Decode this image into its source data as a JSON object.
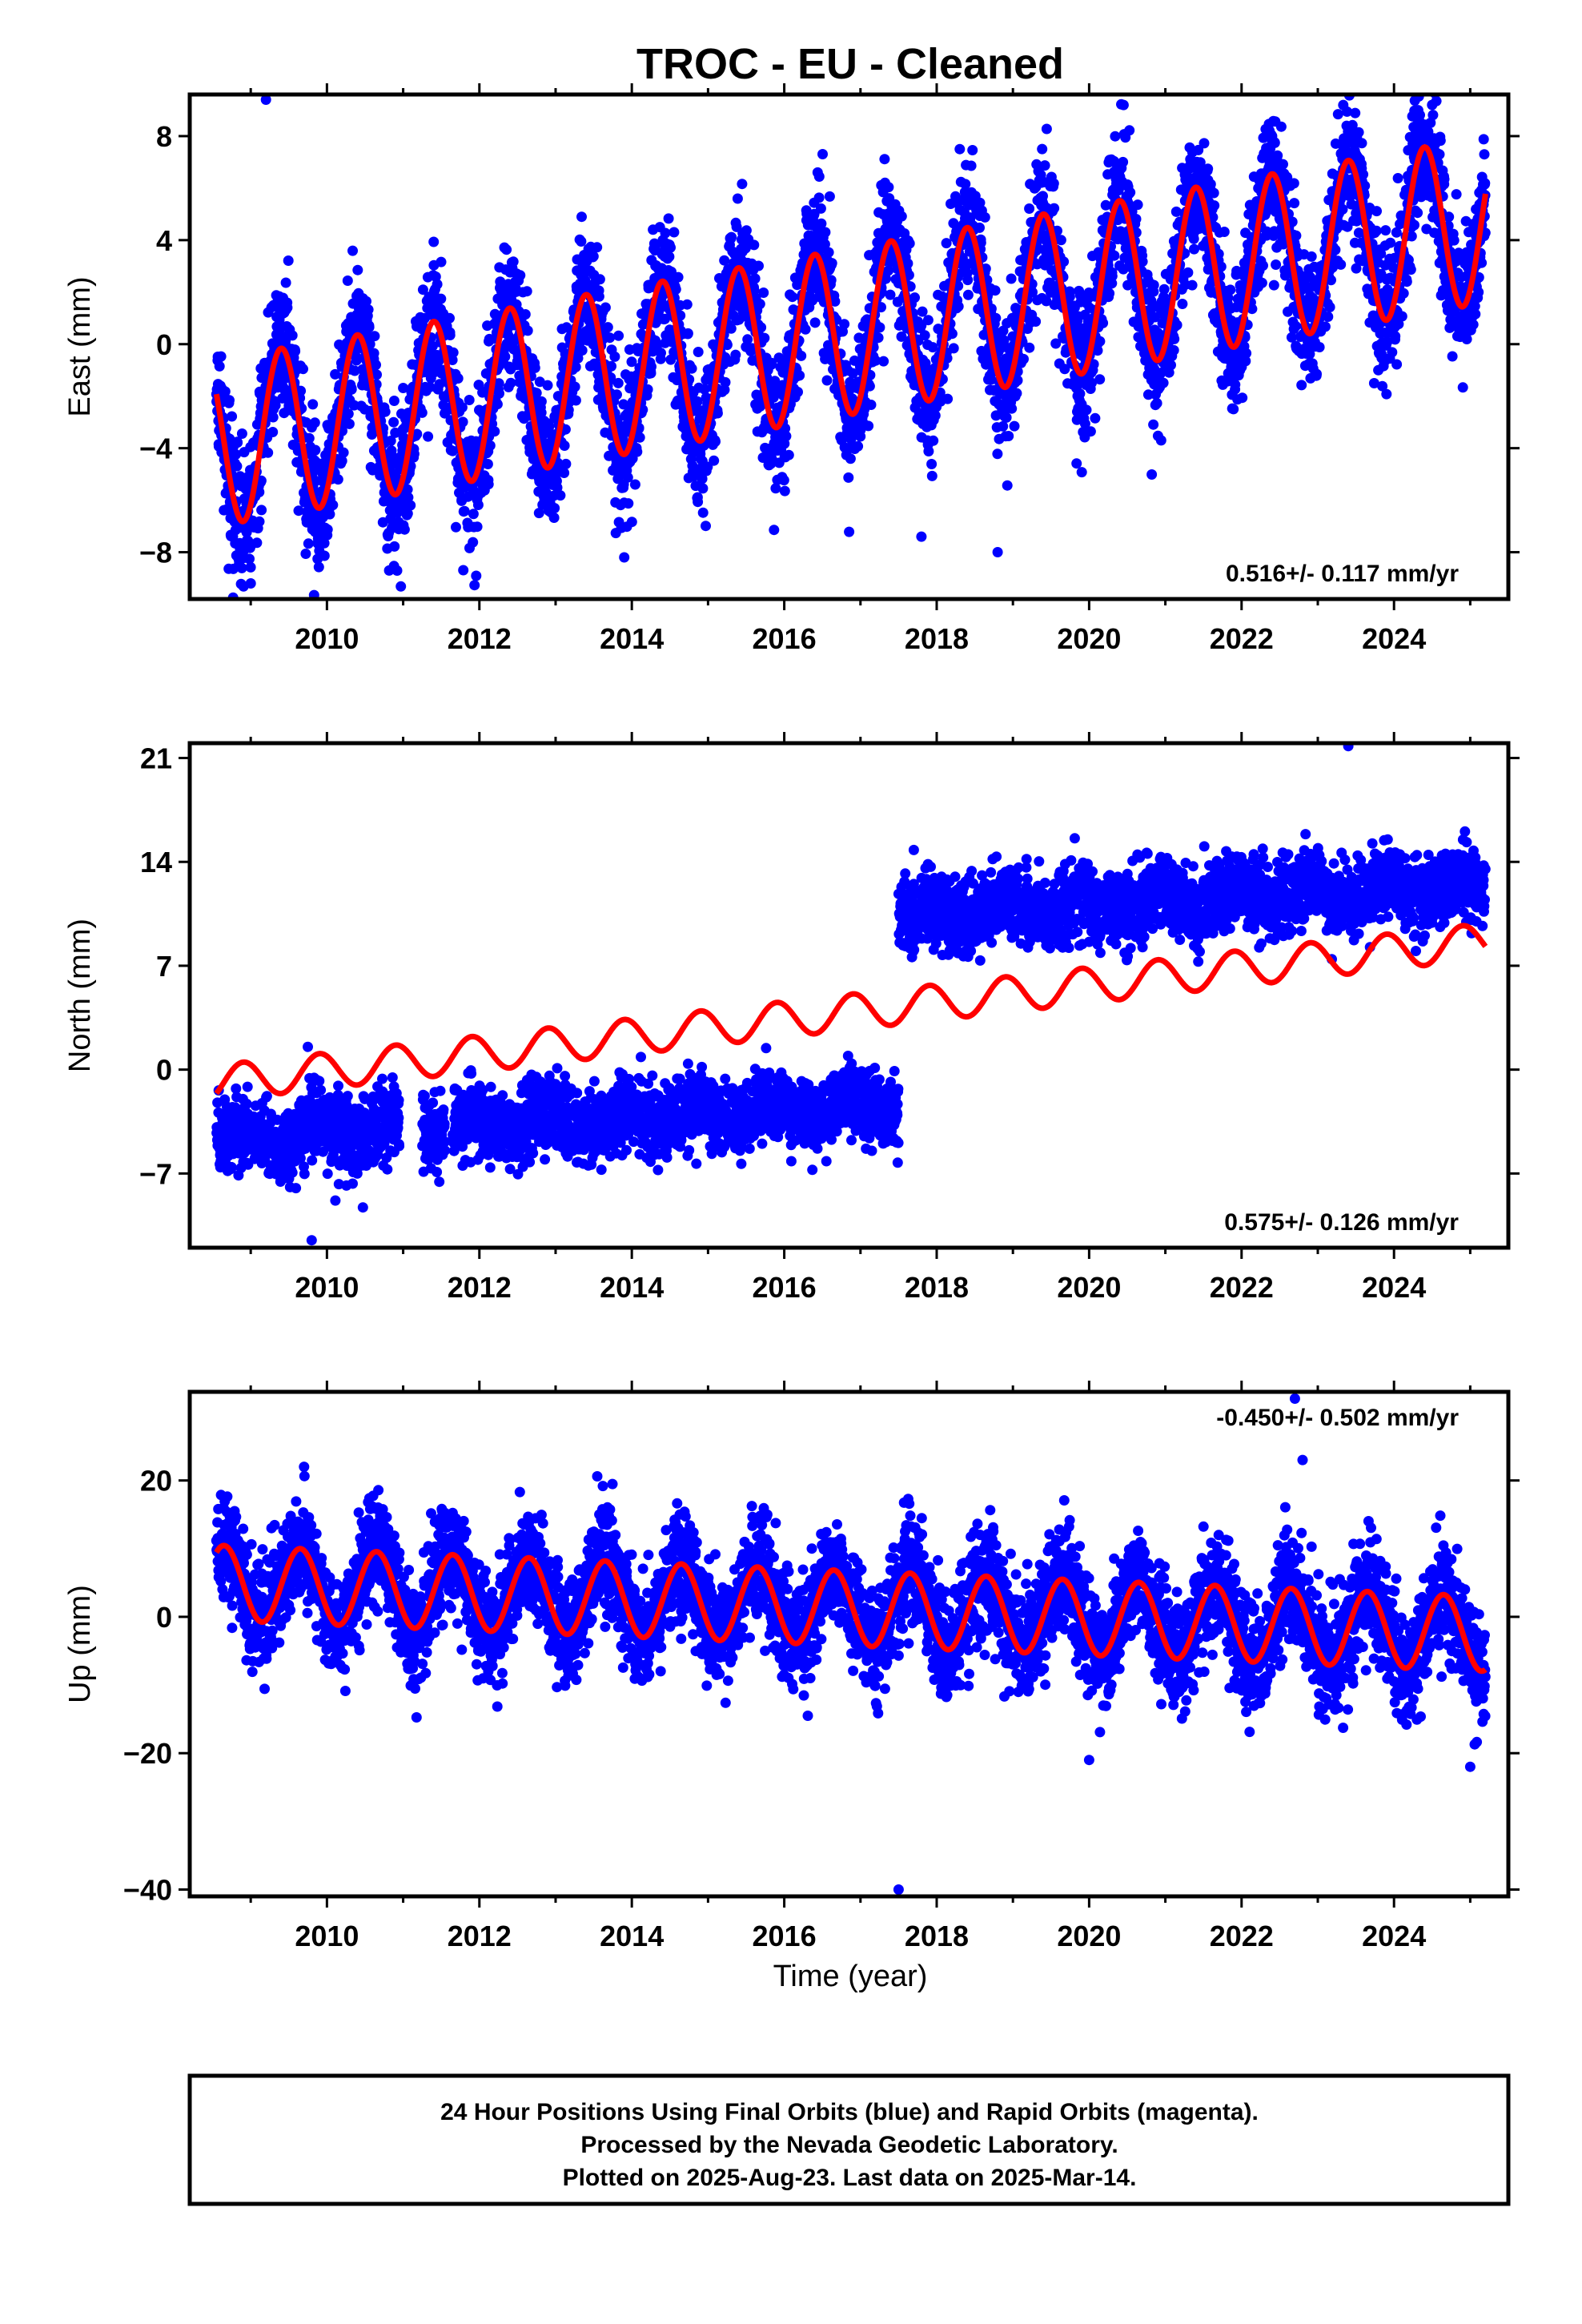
{
  "title": "TROC  - EU - Cleaned",
  "xlabel": "Time (year)",
  "colors": {
    "final_orbits": "#0000ff",
    "model": "#ff0000",
    "frame": "#000000"
  },
  "caption": {
    "line1": "24 Hour Positions Using Final Orbits (blue) and Rapid Orbits (magenta).",
    "line2": "Processed by the Nevada Geodetic Laboratory.",
    "line3": "Plotted on 2025-Aug-23. Last data on 2025-Mar-14."
  },
  "chart_data": [
    {
      "type": "scatter",
      "component": "east",
      "ylabel": "East (mm)",
      "rate_label": "0.516+/- 0.117 mm/yr",
      "xlim": [
        2008.2,
        2025.5
      ],
      "ylim": [
        -9.8,
        9.6
      ],
      "xticks": [
        2010,
        2012,
        2014,
        2016,
        2018,
        2020,
        2022,
        2024
      ],
      "yticks": [
        -8,
        -4,
        0,
        4,
        8
      ],
      "yticklabels": [
        "−8",
        "−4",
        "0",
        "4",
        "8"
      ],
      "data_start": 2008.55,
      "data_end": 2025.2,
      "model": {
        "offset_at_start": -3.8,
        "rate": 0.516,
        "annual_amplitude": 3.2,
        "peak_year_fraction": 0.4,
        "step_year": null,
        "step_size": 0
      },
      "scatter_spread": 1.3,
      "outliers": [
        [
          2009.2,
          9.4
        ],
        [
          2009.0,
          -9.2
        ],
        [
          2013.9,
          -8.2
        ],
        [
          2018.8,
          -8.0
        ],
        [
          2017.8,
          -7.4
        ],
        [
          2024.5,
          9.2
        ],
        [
          2022.4,
          8.0
        ]
      ]
    },
    {
      "type": "scatter",
      "component": "north",
      "ylabel": "North (mm)",
      "rate_label": "0.575+/- 0.126 mm/yr",
      "xlim": [
        2008.2,
        2025.5
      ],
      "ylim": [
        -12,
        22
      ],
      "xticks": [
        2010,
        2012,
        2014,
        2016,
        2018,
        2020,
        2022,
        2024
      ],
      "yticks": [
        -7,
        0,
        7,
        14,
        21
      ],
      "yticklabels": [
        "−7",
        "0",
        "7",
        "14",
        "21"
      ],
      "data_start": 2008.55,
      "data_end": 2025.2,
      "model": {
        "offset_at_start": -0.9,
        "rate": 0.575,
        "annual_amplitude": 1.2,
        "peak_year_fraction": 0.9,
        "step_year": null,
        "step_size": 0
      },
      "data_trend": {
        "start": -4.6,
        "rate": 0.25,
        "step_year": 2017.5,
        "step_size": 12.8
      },
      "scatter_spread": 1.2,
      "outliers": [
        [
          2009.8,
          -11.5
        ],
        [
          2017.7,
          14.8
        ],
        [
          2023.4,
          21.8
        ]
      ]
    },
    {
      "type": "scatter",
      "component": "up",
      "ylabel": "Up (mm)",
      "rate_label": "-0.450+/- 0.502 mm/yr",
      "xlim": [
        2008.2,
        2025.5
      ],
      "ylim": [
        -41,
        33
      ],
      "xticks": [
        2010,
        2012,
        2014,
        2016,
        2018,
        2020,
        2022,
        2024
      ],
      "yticks": [
        -40,
        -20,
        0,
        20
      ],
      "yticklabels": [
        "−40",
        "−20",
        "0",
        "20"
      ],
      "data_start": 2008.55,
      "data_end": 2025.2,
      "model": {
        "offset_at_start": 5.0,
        "rate": -0.45,
        "annual_amplitude": 5.5,
        "peak_year_fraction": 0.65,
        "step_year": null,
        "step_size": 0
      },
      "scatter_spread": 4.0,
      "outliers": [
        [
          2017.5,
          -40
        ],
        [
          2022.7,
          32
        ],
        [
          2020.0,
          -21
        ],
        [
          2025.0,
          -22
        ],
        [
          2009.7,
          22
        ],
        [
          2022.8,
          23
        ]
      ]
    }
  ]
}
